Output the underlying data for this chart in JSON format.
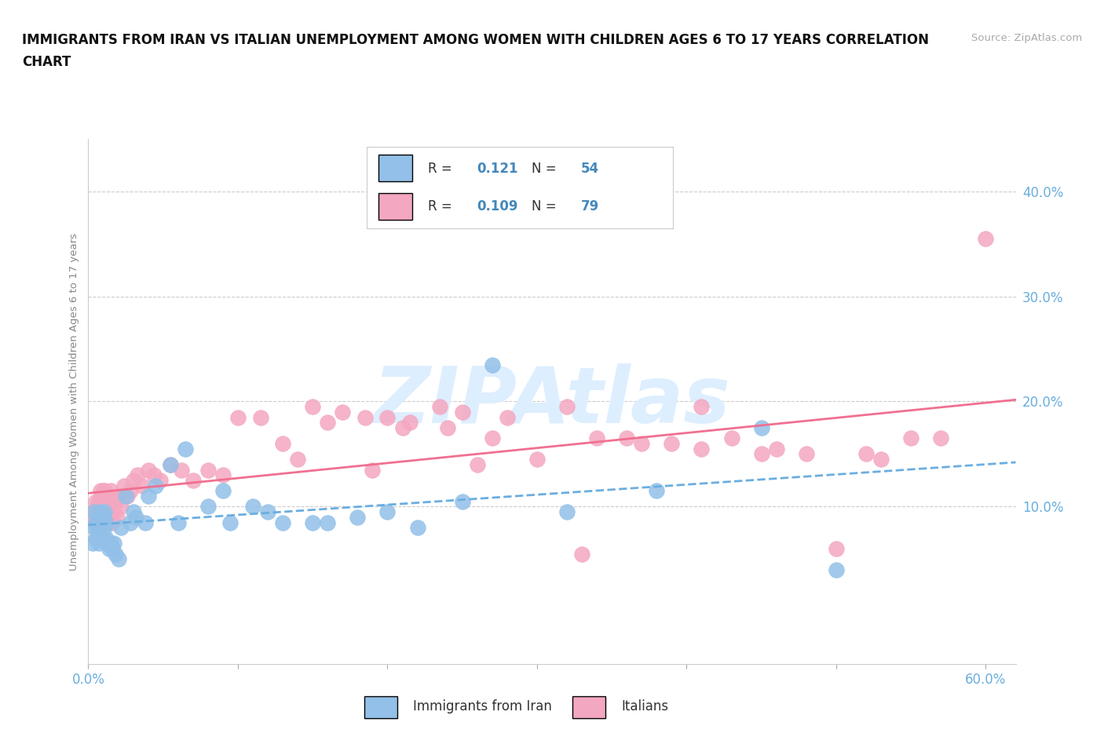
{
  "title_line1": "IMMIGRANTS FROM IRAN VS ITALIAN UNEMPLOYMENT AMONG WOMEN WITH CHILDREN AGES 6 TO 17 YEARS CORRELATION",
  "title_line2": "CHART",
  "source": "Source: ZipAtlas.com",
  "ylabel": "Unemployment Among Women with Children Ages 6 to 17 years",
  "xlim": [
    0.0,
    0.62
  ],
  "ylim": [
    -0.05,
    0.45
  ],
  "ytick_vals": [
    0.1,
    0.2,
    0.3,
    0.4
  ],
  "ytick_labels": [
    "10.0%",
    "20.0%",
    "30.0%",
    "40.0%"
  ],
  "xtick_vals": [
    0.0,
    0.1,
    0.2,
    0.3,
    0.4,
    0.5,
    0.6
  ],
  "xtick_labels": [
    "0.0%",
    "",
    "",
    "",
    "",
    "",
    "60.0%"
  ],
  "blue_color": "#92C0E8",
  "pink_color": "#F4A7C0",
  "blue_line_color": "#6aaee0",
  "pink_line_color": "#f07090",
  "blue_R": "0.121",
  "blue_N": "54",
  "pink_R": "0.109",
  "pink_N": "79",
  "legend_label_blue": "Immigrants from Iran",
  "legend_label_pink": "Italians",
  "legend_text_color": "#4488bb",
  "blue_x": [
    0.003,
    0.004,
    0.004,
    0.005,
    0.005,
    0.006,
    0.006,
    0.007,
    0.007,
    0.008,
    0.008,
    0.009,
    0.009,
    0.01,
    0.01,
    0.011,
    0.011,
    0.012,
    0.012,
    0.013,
    0.014,
    0.015,
    0.016,
    0.017,
    0.018,
    0.02,
    0.022,
    0.025,
    0.028,
    0.032,
    0.038,
    0.045,
    0.055,
    0.065,
    0.08,
    0.095,
    0.11,
    0.13,
    0.15,
    0.18,
    0.22,
    0.27,
    0.03,
    0.04,
    0.06,
    0.09,
    0.12,
    0.16,
    0.2,
    0.25,
    0.32,
    0.38,
    0.45,
    0.5
  ],
  "blue_y": [
    0.065,
    0.08,
    0.095,
    0.07,
    0.085,
    0.075,
    0.09,
    0.065,
    0.085,
    0.075,
    0.095,
    0.07,
    0.085,
    0.07,
    0.09,
    0.08,
    0.095,
    0.07,
    0.085,
    0.065,
    0.06,
    0.065,
    0.06,
    0.065,
    0.055,
    0.05,
    0.08,
    0.11,
    0.085,
    0.09,
    0.085,
    0.12,
    0.14,
    0.155,
    0.1,
    0.085,
    0.1,
    0.085,
    0.085,
    0.09,
    0.08,
    0.235,
    0.095,
    0.11,
    0.085,
    0.115,
    0.095,
    0.085,
    0.095,
    0.105,
    0.095,
    0.115,
    0.175,
    0.04
  ],
  "pink_x": [
    0.003,
    0.004,
    0.005,
    0.005,
    0.006,
    0.006,
    0.007,
    0.007,
    0.008,
    0.008,
    0.009,
    0.009,
    0.01,
    0.01,
    0.011,
    0.011,
    0.012,
    0.012,
    0.013,
    0.014,
    0.015,
    0.015,
    0.016,
    0.017,
    0.018,
    0.019,
    0.02,
    0.022,
    0.024,
    0.026,
    0.028,
    0.03,
    0.033,
    0.036,
    0.04,
    0.044,
    0.048,
    0.055,
    0.062,
    0.07,
    0.08,
    0.09,
    0.1,
    0.115,
    0.13,
    0.15,
    0.17,
    0.19,
    0.215,
    0.24,
    0.27,
    0.3,
    0.33,
    0.37,
    0.41,
    0.45,
    0.5,
    0.55,
    0.41,
    0.46,
    0.52,
    0.57,
    0.6,
    0.34,
    0.39,
    0.43,
    0.48,
    0.53,
    0.2,
    0.25,
    0.28,
    0.32,
    0.36,
    0.14,
    0.16,
    0.185,
    0.21,
    0.235,
    0.26
  ],
  "pink_y": [
    0.095,
    0.09,
    0.085,
    0.105,
    0.08,
    0.1,
    0.085,
    0.105,
    0.095,
    0.115,
    0.09,
    0.105,
    0.095,
    0.115,
    0.1,
    0.115,
    0.095,
    0.11,
    0.1,
    0.09,
    0.095,
    0.115,
    0.085,
    0.095,
    0.105,
    0.09,
    0.11,
    0.1,
    0.12,
    0.11,
    0.115,
    0.125,
    0.13,
    0.12,
    0.135,
    0.13,
    0.125,
    0.14,
    0.135,
    0.125,
    0.135,
    0.13,
    0.185,
    0.185,
    0.16,
    0.195,
    0.19,
    0.135,
    0.18,
    0.175,
    0.165,
    0.145,
    0.055,
    0.16,
    0.155,
    0.15,
    0.06,
    0.165,
    0.195,
    0.155,
    0.15,
    0.165,
    0.355,
    0.165,
    0.16,
    0.165,
    0.15,
    0.145,
    0.185,
    0.19,
    0.185,
    0.195,
    0.165,
    0.145,
    0.18,
    0.185,
    0.175,
    0.195,
    0.14
  ],
  "background_color": "#ffffff",
  "grid_color": "#cccccc",
  "tick_label_color": "#6aaedd",
  "watermark_color": "#ddeeff"
}
